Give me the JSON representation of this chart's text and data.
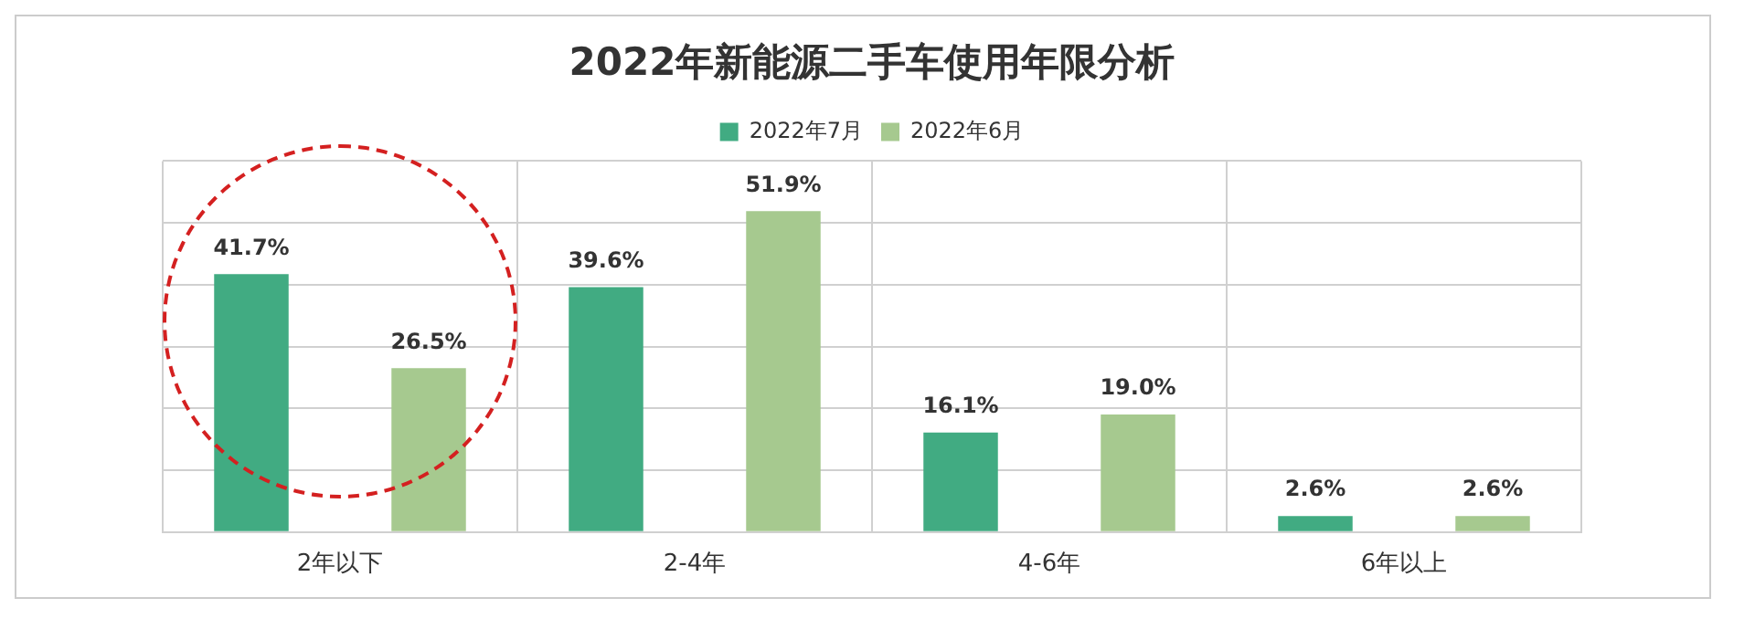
{
  "chart_data": {
    "type": "bar",
    "title": "2022年新能源二手车使用年限分析",
    "categories": [
      "2年以下",
      "2-4年",
      "4-6年",
      "6年以上"
    ],
    "series": [
      {
        "name": "2022年7月",
        "color": "#41ab82",
        "values": [
          41.7,
          39.6,
          16.1,
          2.6
        ],
        "value_labels": [
          "41.7%",
          "39.6%",
          "16.1%",
          "2.6%"
        ]
      },
      {
        "name": "2022年6月",
        "color": "#a6c98f",
        "values": [
          26.5,
          51.9,
          19.0,
          2.6
        ],
        "value_labels": [
          "26.5%",
          "51.9%",
          "19.0%",
          "2.6%"
        ]
      }
    ],
    "ylim": [
      0,
      60
    ],
    "yticks": [
      {
        "value": 0,
        "label": null
      },
      {
        "value": 10,
        "label": null
      },
      {
        "value": 20,
        "label": null
      },
      {
        "value": 30,
        "label": null
      },
      {
        "value": 40,
        "label": null
      },
      {
        "value": 50,
        "label": null
      },
      {
        "value": 60,
        "label": null
      }
    ],
    "tick_labels": "x",
    "grid": true,
    "legend": "top"
  }
}
